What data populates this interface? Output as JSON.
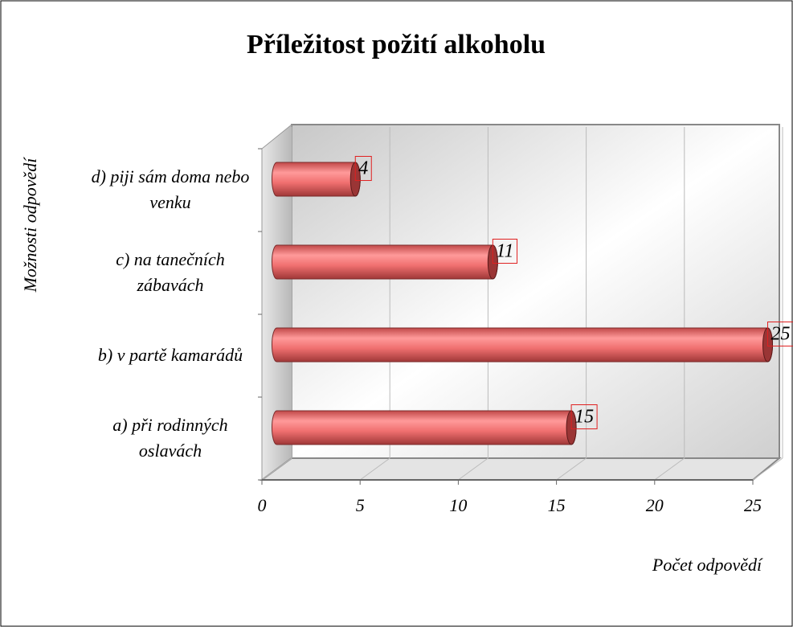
{
  "chart_data": {
    "type": "bar",
    "orientation": "horizontal",
    "title": "Příležitost požití alkoholu",
    "categories": [
      "a) při rodinných oslavách",
      "b) v partě kamarádů",
      "c) na tanečních zábavách",
      "d) piji sám doma nebo venku"
    ],
    "values": [
      15,
      25,
      11,
      4
    ],
    "color": "#f07070",
    "xlim": [
      0,
      25
    ],
    "xticks": [
      0,
      5,
      10,
      15,
      20,
      25
    ],
    "grid": true,
    "xlabel": "Počet odpovědí",
    "ylabel": "Možnosti odpovědí"
  }
}
